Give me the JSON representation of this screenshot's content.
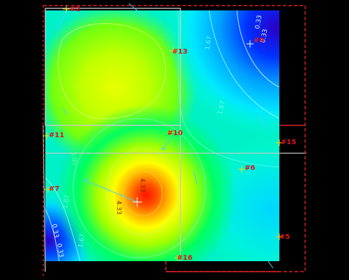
{
  "view": {
    "background_color": "#000000",
    "colormap": [
      "#2a00c8",
      "#0030ff",
      "#00c8ff",
      "#00ffaa",
      "#00ff40",
      "#a0ff00",
      "#ffff00",
      "#ffb000",
      "#ff5000",
      "#ff1400"
    ],
    "grid_color": "#c8c8c8",
    "selection_color": "#e02020",
    "marker_color": "#e0141e",
    "arrow_color": "#40d0ff"
  },
  "markers": [
    {
      "id": "marker-2",
      "label": "#2"
    },
    {
      "id": "marker-13",
      "label": "#13"
    },
    {
      "id": "marker-9",
      "label": "#9"
    },
    {
      "id": "marker-11",
      "label": "#11"
    },
    {
      "id": "marker-10",
      "label": "#10"
    },
    {
      "id": "marker-15",
      "label": "#15"
    },
    {
      "id": "marker-6",
      "label": "#6"
    },
    {
      "id": "marker-7",
      "label": "#7"
    },
    {
      "id": "marker-peak",
      "label": ""
    },
    {
      "id": "marker-5",
      "label": "#5"
    },
    {
      "id": "marker-16",
      "label": "#16"
    }
  ],
  "contour_labels": [
    {
      "id": "c-033-a",
      "label": "0.33"
    },
    {
      "id": "c-033-b",
      "label": "0.33"
    },
    {
      "id": "c-167-a",
      "label": "1.67"
    },
    {
      "id": "c-167-b",
      "label": "1.67"
    },
    {
      "id": "c-167-c",
      "label": "1.67"
    },
    {
      "id": "c-167-d",
      "label": "1.67"
    },
    {
      "id": "c-433-a",
      "label": "4.33"
    },
    {
      "id": "c-433-b",
      "label": "4.33"
    },
    {
      "id": "c-300-a",
      "label": "3.00"
    },
    {
      "id": "c-033-c",
      "label": "0.33"
    },
    {
      "id": "c-033-d",
      "label": "0.33"
    }
  ]
}
